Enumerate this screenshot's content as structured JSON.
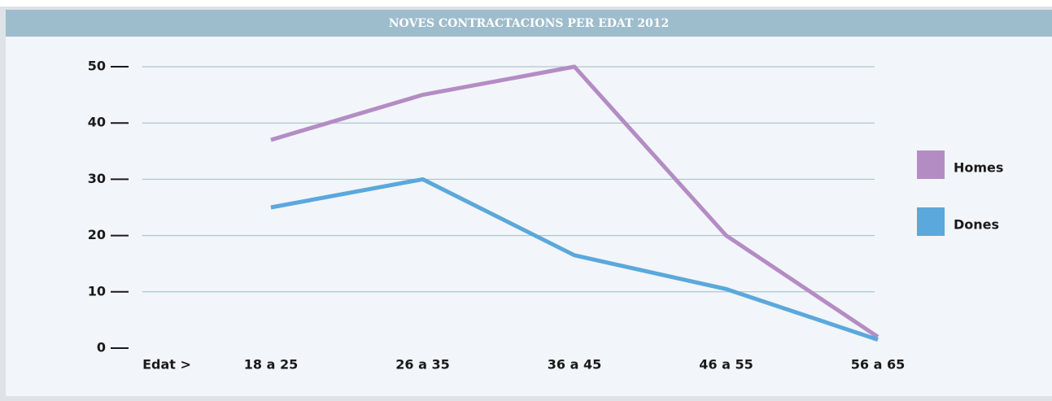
{
  "chart_data": {
    "type": "line",
    "title": "NOVES CONTRACTACIONS PER EDAT 2012",
    "x_label": "Edat >",
    "categories": [
      "18 a 25",
      "26 a 35",
      "36 a 45",
      "46 a 55",
      "56 a 65"
    ],
    "series": [
      {
        "name": "Homes",
        "color": "#b48cc4",
        "values": [
          37,
          45,
          50,
          20,
          2
        ]
      },
      {
        "name": "Dones",
        "color": "#5aa8dc",
        "values": [
          25,
          30,
          16.5,
          10.5,
          1.5
        ]
      }
    ],
    "ylim": [
      0,
      50
    ],
    "yticks": [
      0,
      10,
      20,
      30,
      40,
      50
    ],
    "grid": true,
    "legend": "right"
  }
}
